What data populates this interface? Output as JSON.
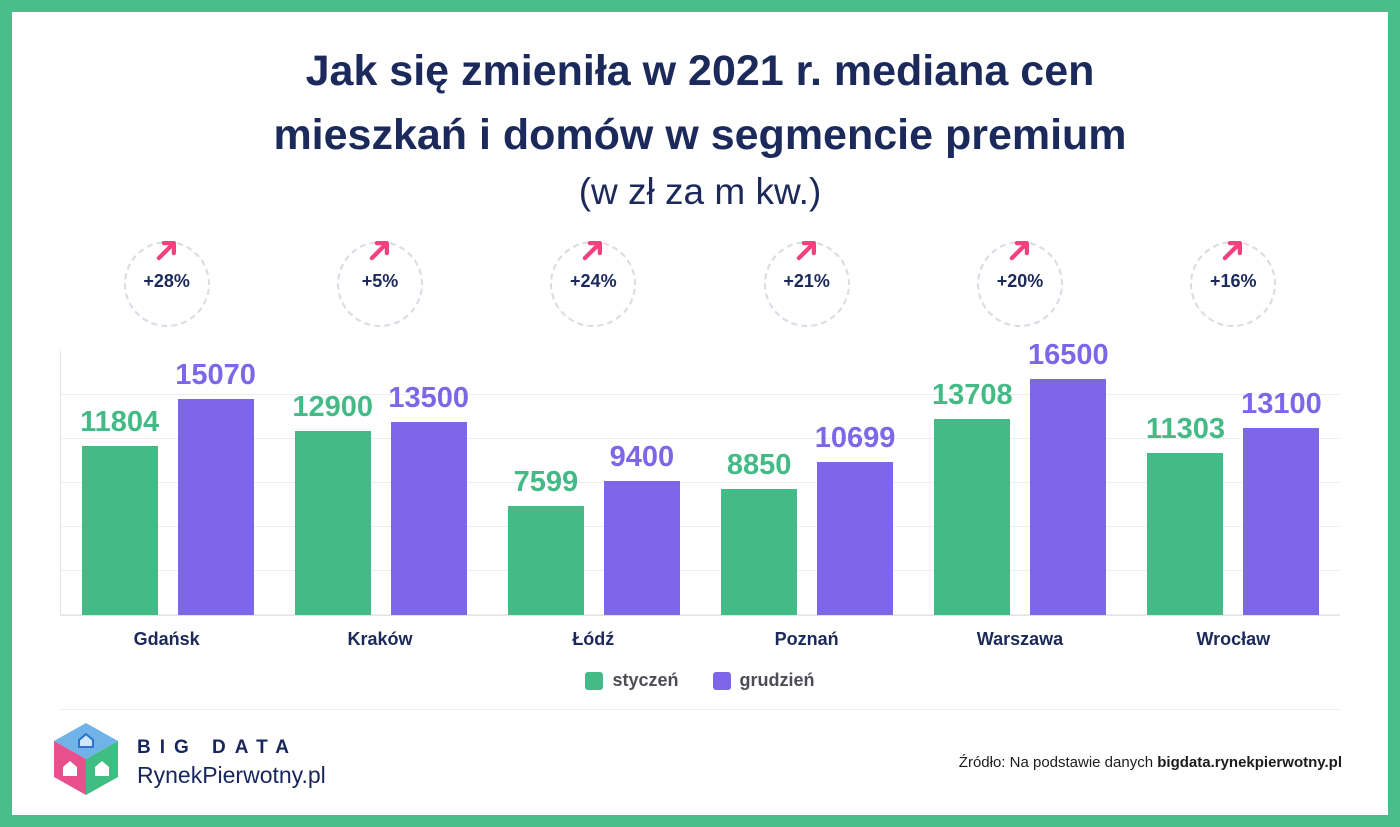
{
  "title": {
    "line1": "Jak się zmieniła w 2021 r. mediana cen",
    "line2": "mieszkań i domów w segmencie premium",
    "subtitle": "(w zł za m kw.)"
  },
  "chart_data": {
    "type": "bar",
    "title": "Jak się zmieniła w 2021 r. mediana cen mieszkań i domów w segmencie premium (w zł za m kw.)",
    "categories": [
      "Gdańsk",
      "Kraków",
      "Łódź",
      "Poznań",
      "Warszawa",
      "Wrocław"
    ],
    "series": [
      {
        "name": "styczeń",
        "color": "#44BB86",
        "values": [
          11804,
          12900,
          7599,
          8850,
          13708,
          11303
        ]
      },
      {
        "name": "grudzień",
        "color": "#7D67E8",
        "values": [
          15070,
          13500,
          9400,
          10699,
          16500,
          13100
        ]
      }
    ],
    "percent_changes": [
      "+28%",
      "+5%",
      "+24%",
      "+21%",
      "+20%",
      "+16%"
    ],
    "ylim": [
      0,
      16500
    ],
    "grid": true,
    "value_labels": true,
    "legend_position": "bottom"
  },
  "legend": {
    "items": [
      {
        "label": "styczeń",
        "color": "#44BB86"
      },
      {
        "label": "grudzień",
        "color": "#7D67E8"
      }
    ]
  },
  "footer": {
    "brand_top": "BIG DATA",
    "brand_bottom": "RynekPierwotny.pl",
    "source_prefix": "Źródło: Na podstawie danych ",
    "source_bold": "bigdata.rynekpierwotny.pl"
  },
  "colors": {
    "frame_green": "#49BE8B",
    "title_navy": "#1B2A5B",
    "accent_pink": "#F5407D"
  }
}
